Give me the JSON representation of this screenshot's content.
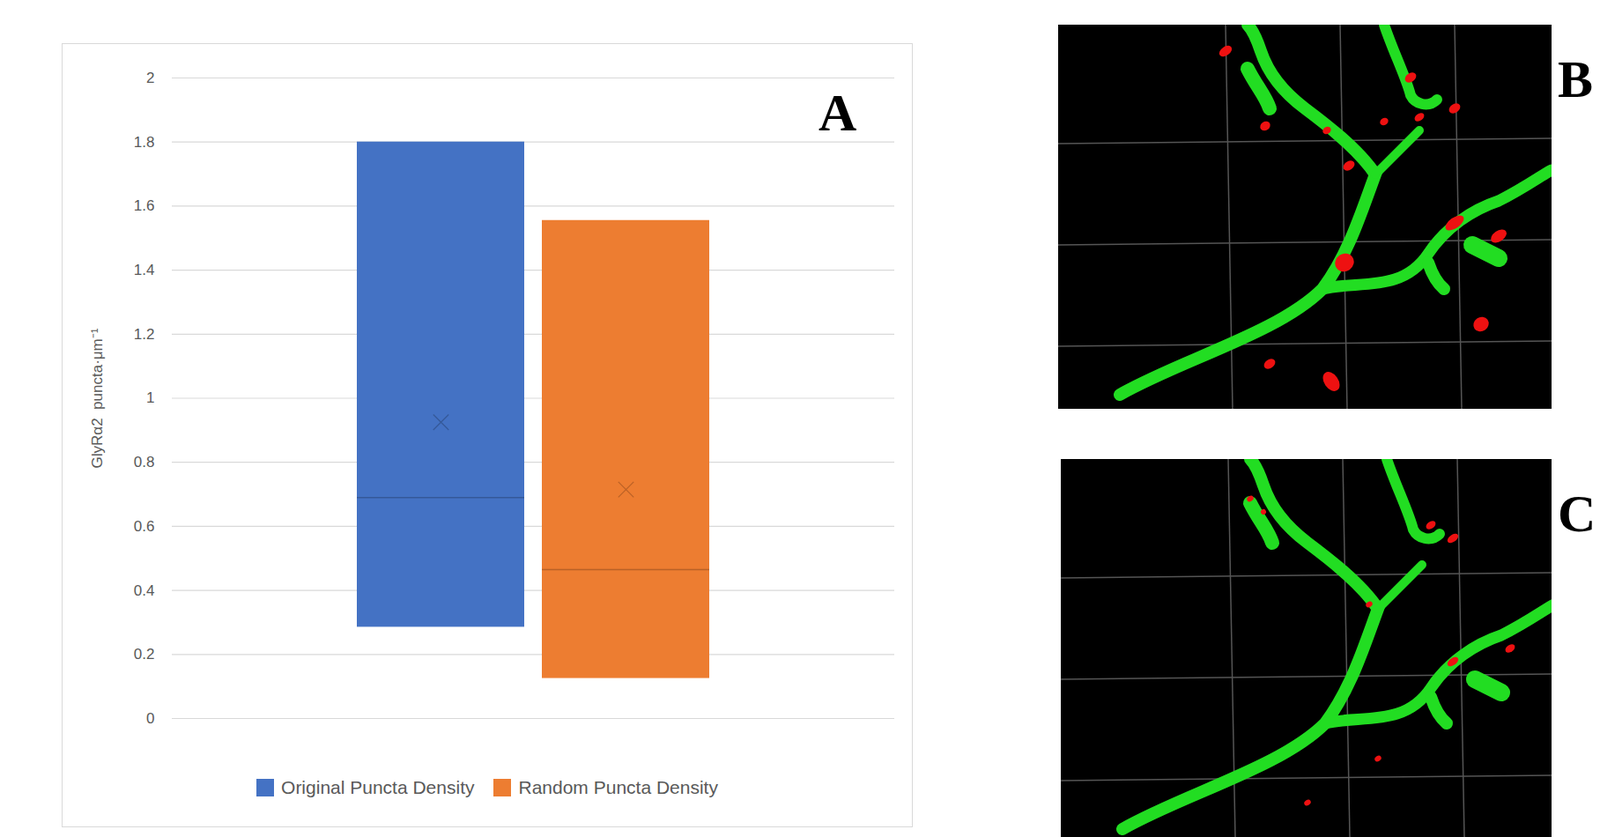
{
  "chart_data": {
    "type": "box",
    "categories": [
      "Original Puncta Density",
      "Random Puncta Density"
    ],
    "q1": [
      0.285,
      0.125
    ],
    "median": [
      0.69,
      0.465
    ],
    "q3": [
      1.8,
      1.555
    ],
    "mean": [
      0.925,
      0.715
    ],
    "colors": [
      "#4472c4",
      "#ed7d31"
    ],
    "y_label": "GlyRα2  puncta·μm⁻¹",
    "ylim": [
      0,
      2
    ],
    "yticks": [
      0,
      0.2,
      0.4,
      0.6,
      0.8,
      1,
      1.2,
      1.4,
      1.6,
      1.8,
      2
    ],
    "grid": true,
    "legend": "bottom",
    "tick_labels": "y",
    "annotations": [
      "A"
    ]
  },
  "images": [
    {
      "label": "B"
    },
    {
      "label": "C"
    }
  ]
}
